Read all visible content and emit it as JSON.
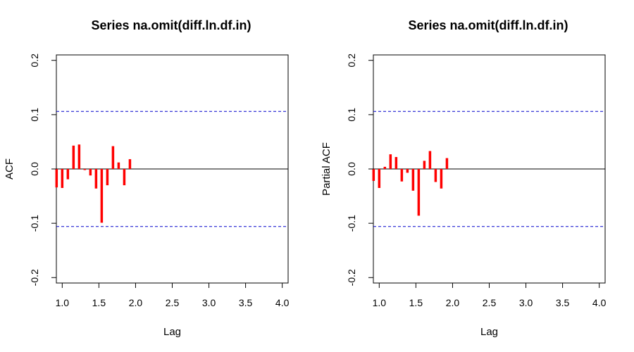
{
  "chart_data": [
    {
      "type": "bar",
      "title": "Series  na.omit(diff.ln.df.in)",
      "xlabel": "Lag",
      "ylabel": "ACF",
      "xlim": [
        0.92,
        4.08
      ],
      "ylim": [
        -0.21,
        0.21
      ],
      "xticks": [
        "1.0",
        "1.5",
        "2.0",
        "2.5",
        "3.0",
        "3.5",
        "4.0"
      ],
      "yticks": [
        "-0.2",
        "-0.1",
        "0.0",
        "0.1",
        "0.2"
      ],
      "confidence_bound": 0.106,
      "bar_color": "#ff0000",
      "bound_color": "#0000cc",
      "lags": [
        0.9231,
        1.0,
        1.0769,
        1.1538,
        1.2308,
        1.3077,
        1.3846,
        1.4615,
        1.5385,
        1.6154,
        1.6923,
        1.7692,
        1.8462,
        1.9231,
        2.0
      ],
      "values": [
        -0.034,
        -0.035,
        -0.019,
        0.043,
        0.045,
        -0.002,
        -0.012,
        -0.036,
        -0.099,
        -0.03,
        0.042,
        0.012,
        -0.03,
        0.018,
        0.0
      ]
    },
    {
      "type": "bar",
      "title": "Series  na.omit(diff.ln.df.in)",
      "xlabel": "Lag",
      "ylabel": "Partial ACF",
      "xlim": [
        0.92,
        4.08
      ],
      "ylim": [
        -0.21,
        0.21
      ],
      "xticks": [
        "1.0",
        "1.5",
        "2.0",
        "2.5",
        "3.0",
        "3.5",
        "4.0"
      ],
      "yticks": [
        "-0.2",
        "-0.1",
        "0.0",
        "0.1",
        "0.2"
      ],
      "confidence_bound": 0.106,
      "bar_color": "#ff0000",
      "bound_color": "#0000cc",
      "lags": [
        0.9231,
        1.0,
        1.0769,
        1.1538,
        1.2308,
        1.3077,
        1.3846,
        1.4615,
        1.5385,
        1.6154,
        1.6923,
        1.7692,
        1.8462,
        1.9231,
        2.0
      ],
      "values": [
        -0.022,
        -0.035,
        0.004,
        0.027,
        0.022,
        -0.023,
        -0.007,
        -0.04,
        -0.086,
        0.015,
        0.033,
        -0.024,
        -0.036,
        0.02,
        0.0
      ]
    }
  ]
}
